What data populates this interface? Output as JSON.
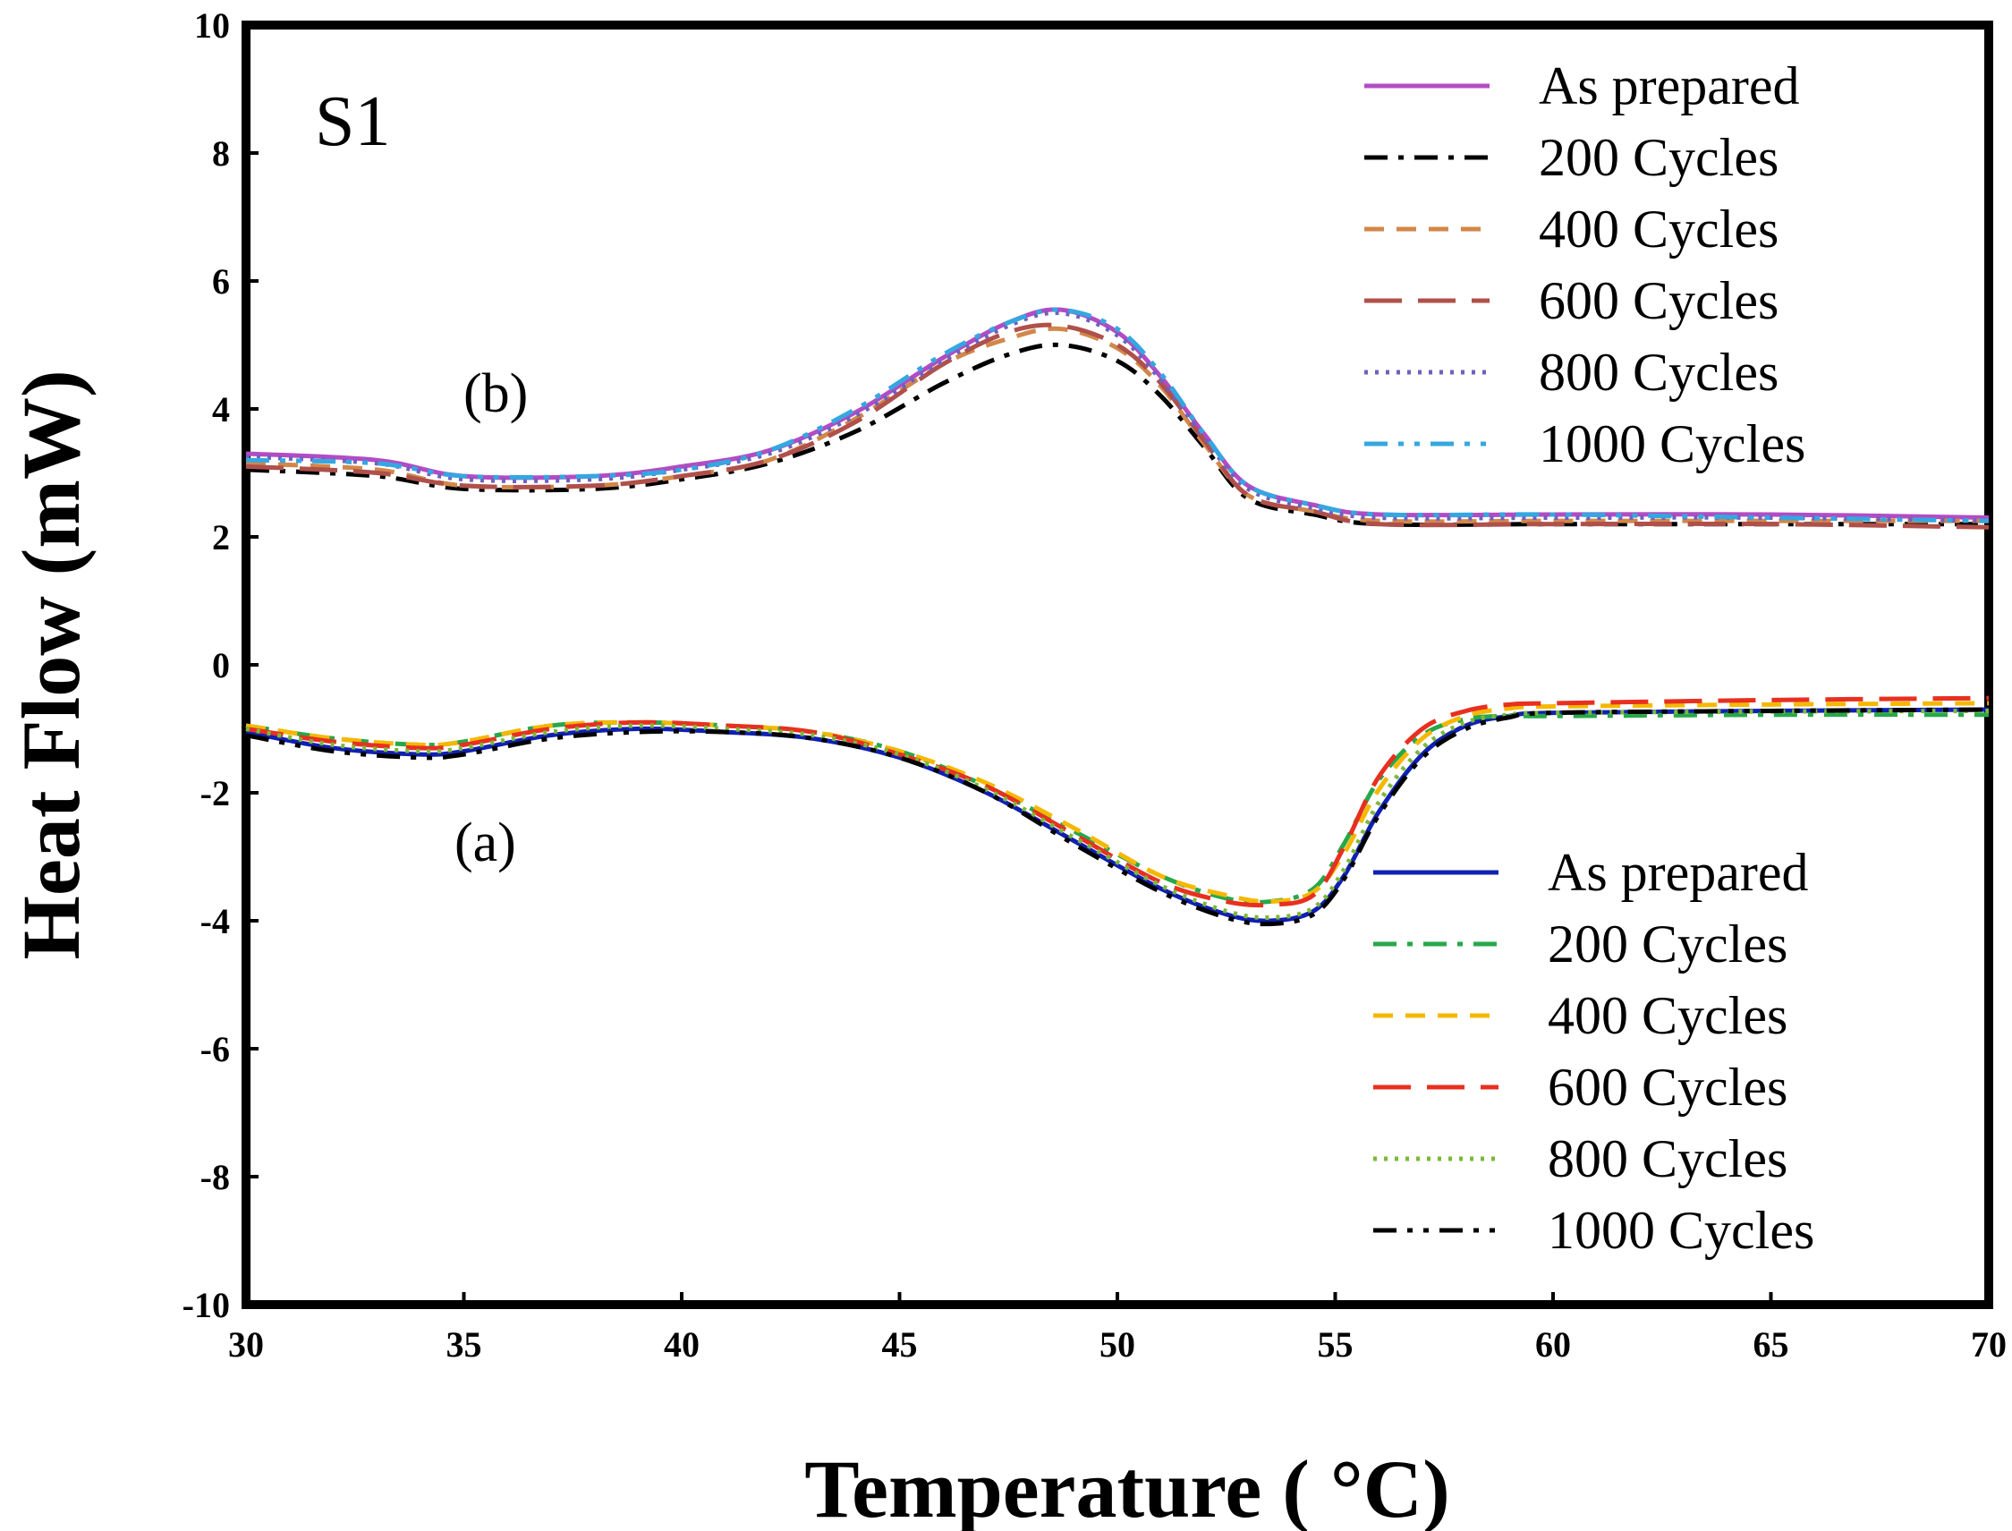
{
  "chart_data": {
    "type": "line",
    "title": "",
    "xlabel": "Temperature ( °C)",
    "ylabel": "Heat Flow (mW)",
    "xlim": [
      30,
      70
    ],
    "ylim": [
      -10,
      10
    ],
    "x_ticks": [
      "30",
      "35",
      "40",
      "45",
      "50",
      "55",
      "60",
      "65",
      "70"
    ],
    "y_ticks": [
      "10",
      "8",
      "6",
      "4",
      "2",
      "0",
      "-2",
      "-4",
      "-6",
      "-8",
      "-10"
    ],
    "grid": false,
    "annotations": {
      "sample": "S1",
      "heating": "(b)",
      "cooling": "(a)"
    },
    "legend_b": [
      "As prepared",
      "200 Cycles",
      "400 Cycles",
      "600 Cycles",
      "800 Cycles",
      "1000 Cycles"
    ],
    "legend_a": [
      "As prepared",
      "200 Cycles",
      "400 Cycles",
      "600 Cycles",
      "800 Cycles",
      "1000 Cycles"
    ],
    "series": [
      {
        "group": "b",
        "name": "As prepared",
        "color": "#b24cc4",
        "dash": "solid",
        "x": [
          30,
          33,
          35,
          38,
          40,
          42,
          44,
          46,
          47.5,
          48.7,
          50,
          51,
          52,
          53,
          54.5,
          56,
          60,
          65,
          70
        ],
        "y": [
          3.3,
          3.2,
          2.95,
          2.95,
          3.1,
          3.35,
          3.95,
          4.8,
          5.35,
          5.55,
          5.2,
          4.5,
          3.6,
          2.8,
          2.5,
          2.35,
          2.35,
          2.35,
          2.3
        ]
      },
      {
        "group": "b",
        "name": "200 Cycles",
        "color": "#000000",
        "dash": "dashdot",
        "x": [
          30,
          33,
          35,
          38,
          40,
          42,
          44,
          46,
          47.5,
          48.7,
          50,
          51,
          52,
          53,
          54.5,
          56,
          60,
          65,
          70
        ],
        "y": [
          3.05,
          2.95,
          2.75,
          2.75,
          2.9,
          3.15,
          3.65,
          4.4,
          4.85,
          5.0,
          4.75,
          4.2,
          3.4,
          2.6,
          2.35,
          2.2,
          2.2,
          2.2,
          2.2
        ]
      },
      {
        "group": "b",
        "name": "400 Cycles",
        "color": "#d2874a",
        "dash": "dash",
        "x": [
          30,
          33,
          35,
          38,
          40,
          42,
          44,
          46,
          47.5,
          48.7,
          50,
          51,
          52,
          53,
          54.5,
          56,
          60,
          65,
          70
        ],
        "y": [
          3.15,
          3.05,
          2.8,
          2.8,
          2.95,
          3.2,
          3.85,
          4.7,
          5.1,
          5.25,
          4.95,
          4.35,
          3.45,
          2.65,
          2.4,
          2.25,
          2.25,
          2.25,
          2.25
        ]
      },
      {
        "group": "b",
        "name": "600 Cycles",
        "color": "#b0504a",
        "dash": "longdash",
        "x": [
          30,
          33,
          35,
          38,
          40,
          42,
          44,
          46,
          47.5,
          48.7,
          50,
          51,
          52,
          53,
          54.5,
          56,
          60,
          65,
          70
        ],
        "y": [
          3.1,
          3.0,
          2.8,
          2.8,
          2.95,
          3.2,
          3.8,
          4.7,
          5.2,
          5.3,
          5.0,
          4.4,
          3.5,
          2.65,
          2.4,
          2.2,
          2.2,
          2.2,
          2.15
        ]
      },
      {
        "group": "b",
        "name": "800 Cycles",
        "color": "#7060c0",
        "dash": "dot",
        "x": [
          30,
          33,
          35,
          38,
          40,
          42,
          44,
          46,
          47.5,
          48.7,
          50,
          51,
          52,
          53,
          54.5,
          56,
          60,
          65,
          70
        ],
        "y": [
          3.25,
          3.15,
          2.9,
          2.9,
          3.05,
          3.3,
          3.9,
          4.75,
          5.3,
          5.5,
          5.15,
          4.45,
          3.55,
          2.75,
          2.45,
          2.3,
          2.3,
          2.3,
          2.25
        ]
      },
      {
        "group": "b",
        "name": "1000 Cycles",
        "color": "#35a7e0",
        "dash": "dashdotdot",
        "x": [
          30,
          33,
          35,
          38,
          40,
          42,
          44,
          46,
          47.5,
          48.7,
          50,
          51,
          52,
          53,
          54.5,
          56,
          60,
          65,
          70
        ],
        "y": [
          3.2,
          3.15,
          2.95,
          2.95,
          3.05,
          3.35,
          4.0,
          4.85,
          5.35,
          5.55,
          5.25,
          4.55,
          3.6,
          2.8,
          2.5,
          2.35,
          2.35,
          2.3,
          2.25
        ]
      },
      {
        "group": "a",
        "name": "As prepared",
        "color": "#1020b0",
        "dash": "solid",
        "x": [
          30,
          32,
          34,
          35,
          37,
          39,
          41,
          43,
          45,
          47,
          49,
          51,
          52.5,
          53.5,
          54.5,
          55.2,
          56,
          57,
          58,
          59,
          60,
          65,
          70
        ],
        "y": [
          -1.05,
          -1.3,
          -1.4,
          -1.35,
          -1.1,
          -1.0,
          -1.05,
          -1.15,
          -1.45,
          -2.0,
          -2.75,
          -3.5,
          -3.9,
          -4.0,
          -3.85,
          -3.3,
          -2.3,
          -1.4,
          -0.95,
          -0.8,
          -0.75,
          -0.72,
          -0.7
        ]
      },
      {
        "group": "a",
        "name": "200 Cycles",
        "color": "#27a84a",
        "dash": "dashdot",
        "x": [
          30,
          32,
          34,
          35,
          37,
          39,
          41,
          43,
          45,
          47,
          49,
          51,
          52.5,
          53.5,
          54.5,
          55.2,
          56,
          57,
          58,
          59,
          60,
          65,
          70
        ],
        "y": [
          -0.95,
          -1.15,
          -1.25,
          -1.2,
          -0.95,
          -0.9,
          -0.95,
          -1.05,
          -1.35,
          -1.9,
          -2.6,
          -3.3,
          -3.65,
          -3.7,
          -3.5,
          -2.8,
          -1.8,
          -1.1,
          -0.85,
          -0.8,
          -0.8,
          -0.78,
          -0.78
        ]
      },
      {
        "group": "a",
        "name": "400 Cycles",
        "color": "#f5b800",
        "dash": "dash",
        "x": [
          30,
          32,
          34,
          35,
          37,
          39,
          41,
          43,
          45,
          47,
          49,
          51,
          52.5,
          53.5,
          54.5,
          55.2,
          56,
          57,
          58,
          59,
          60,
          65,
          70
        ],
        "y": [
          -0.95,
          -1.15,
          -1.25,
          -1.2,
          -0.95,
          -0.9,
          -0.95,
          -1.05,
          -1.35,
          -1.85,
          -2.55,
          -3.3,
          -3.6,
          -3.7,
          -3.55,
          -2.95,
          -1.95,
          -1.15,
          -0.8,
          -0.68,
          -0.65,
          -0.62,
          -0.6
        ]
      },
      {
        "group": "a",
        "name": "600 Cycles",
        "color": "#e83020",
        "dash": "longdash",
        "x": [
          30,
          32,
          34,
          35,
          37,
          39,
          41,
          43,
          45,
          47,
          49,
          51,
          52.5,
          53.5,
          54.5,
          55.2,
          56,
          57,
          58,
          59,
          60,
          65,
          70
        ],
        "y": [
          -1.0,
          -1.2,
          -1.3,
          -1.25,
          -1.0,
          -0.9,
          -0.95,
          -1.05,
          -1.4,
          -1.9,
          -2.65,
          -3.4,
          -3.7,
          -3.75,
          -3.6,
          -2.85,
          -1.75,
          -1.0,
          -0.72,
          -0.62,
          -0.6,
          -0.55,
          -0.52
        ]
      },
      {
        "group": "a",
        "name": "800 Cycles",
        "color": "#7cb83a",
        "dash": "dot",
        "x": [
          30,
          32,
          34,
          35,
          37,
          39,
          41,
          43,
          45,
          47,
          49,
          51,
          52.5,
          53.5,
          54.5,
          55.2,
          56,
          57,
          58,
          59,
          60,
          65,
          70
        ],
        "y": [
          -1.0,
          -1.25,
          -1.35,
          -1.3,
          -1.05,
          -0.95,
          -1.0,
          -1.1,
          -1.4,
          -1.95,
          -2.7,
          -3.45,
          -3.85,
          -3.95,
          -3.8,
          -3.2,
          -2.15,
          -1.3,
          -0.9,
          -0.78,
          -0.75,
          -0.73,
          -0.72
        ]
      },
      {
        "group": "a",
        "name": "1000 Cycles",
        "color": "#000000",
        "dash": "dashdotdot",
        "x": [
          30,
          32,
          34,
          35,
          37,
          39,
          41,
          43,
          45,
          47,
          49,
          51,
          52.5,
          53.5,
          54.5,
          55.2,
          56,
          57,
          58,
          59,
          60,
          65,
          70
        ],
        "y": [
          -1.1,
          -1.35,
          -1.45,
          -1.4,
          -1.15,
          -1.05,
          -1.05,
          -1.15,
          -1.45,
          -2.0,
          -2.8,
          -3.55,
          -3.95,
          -4.05,
          -3.9,
          -3.35,
          -2.35,
          -1.45,
          -1.0,
          -0.82,
          -0.75,
          -0.72,
          -0.7
        ]
      }
    ]
  }
}
